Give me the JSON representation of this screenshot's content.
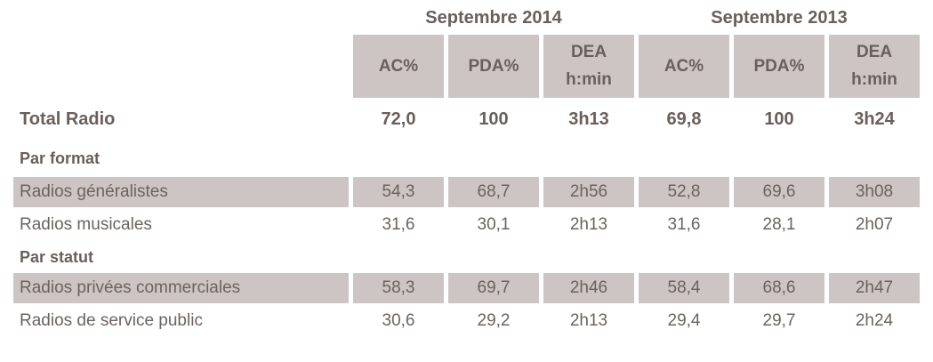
{
  "title": "Audience radio table - Septembre 2014 vs Septembre 2013",
  "colors": {
    "page_background": "#ffffff",
    "cell_background": "#ccc5c4",
    "text_regular": "#6d625f",
    "text_bold": "#6a5f5b"
  },
  "table": {
    "periods": [
      {
        "label": "Septembre 2014"
      },
      {
        "label": "Septembre 2013"
      }
    ],
    "column_headers": [
      {
        "label": "AC%"
      },
      {
        "label": "PDA%"
      },
      {
        "label": "DEA",
        "sublabel": "h:min"
      },
      {
        "label": "AC%"
      },
      {
        "label": "PDA%"
      },
      {
        "label": "DEA",
        "sublabel": "h:min"
      }
    ],
    "rows": [
      {
        "type": "total",
        "label": "Total Radio",
        "shaded": false,
        "values": [
          "72,0",
          "100",
          "3h13",
          "69,8",
          "100",
          "3h24"
        ]
      },
      {
        "type": "section",
        "label": "Par format"
      },
      {
        "type": "data",
        "label": "Radios généralistes",
        "shaded": true,
        "values": [
          "54,3",
          "68,7",
          "2h56",
          "52,8",
          "69,6",
          "3h08"
        ]
      },
      {
        "type": "data",
        "label": "Radios musicales",
        "shaded": false,
        "values": [
          "31,6",
          "30,1",
          "2h13",
          "31,6",
          "28,1",
          "2h07"
        ]
      },
      {
        "type": "section",
        "label": "Par statut"
      },
      {
        "type": "data",
        "label": "Radios privées commerciales",
        "shaded": true,
        "values": [
          "58,3",
          "69,7",
          "2h46",
          "58,4",
          "68,6",
          "2h47"
        ]
      },
      {
        "type": "data",
        "label": "Radios de service public",
        "shaded": false,
        "values": [
          "30,6",
          "29,2",
          "2h13",
          "29,4",
          "29,7",
          "2h24"
        ]
      }
    ]
  }
}
